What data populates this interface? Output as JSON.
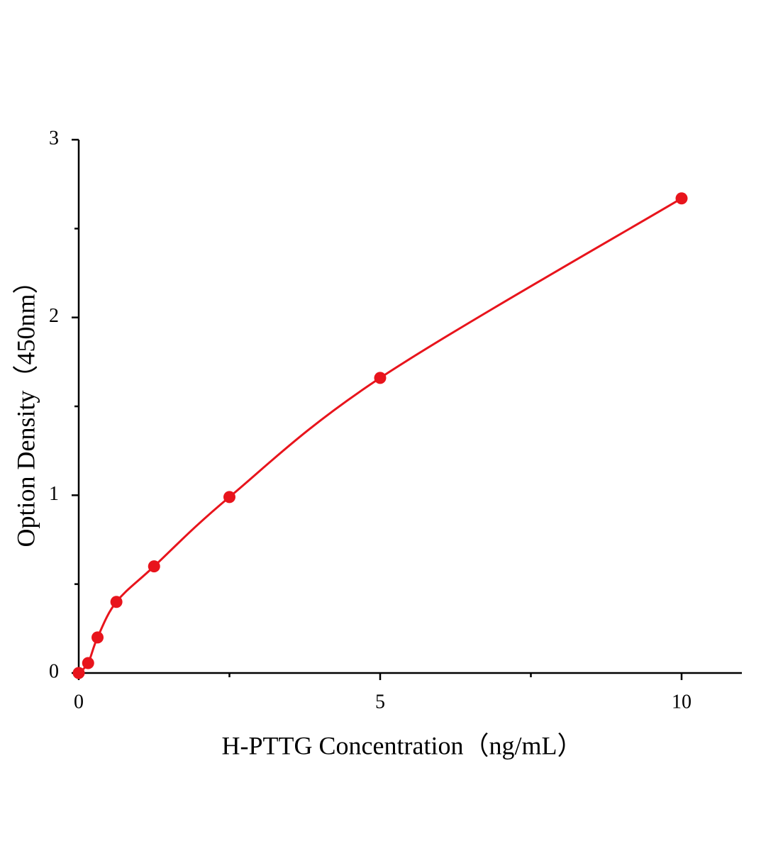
{
  "chart_data": {
    "type": "scatter",
    "x_label": "H-PTTG Concentration（ng/mL）",
    "y_label": "Option Density（450nm）",
    "series": [
      {
        "color": "#e8141c",
        "x": [
          0,
          0.156,
          0.312,
          0.625,
          1.25,
          2.5,
          5,
          10
        ],
        "values": [
          0,
          0.056,
          0.2,
          0.4,
          0.6,
          0.99,
          1.66,
          2.67
        ]
      }
    ],
    "fit_line": true,
    "xlim": [
      0,
      11
    ],
    "xticks": [
      0,
      5,
      10
    ],
    "xminorticks": [
      2.5,
      7.5
    ],
    "ylim": [
      0,
      3
    ],
    "yticks": [
      0,
      1,
      2,
      3
    ],
    "yminorticks": [
      0.5,
      1.5,
      2.5
    ]
  }
}
